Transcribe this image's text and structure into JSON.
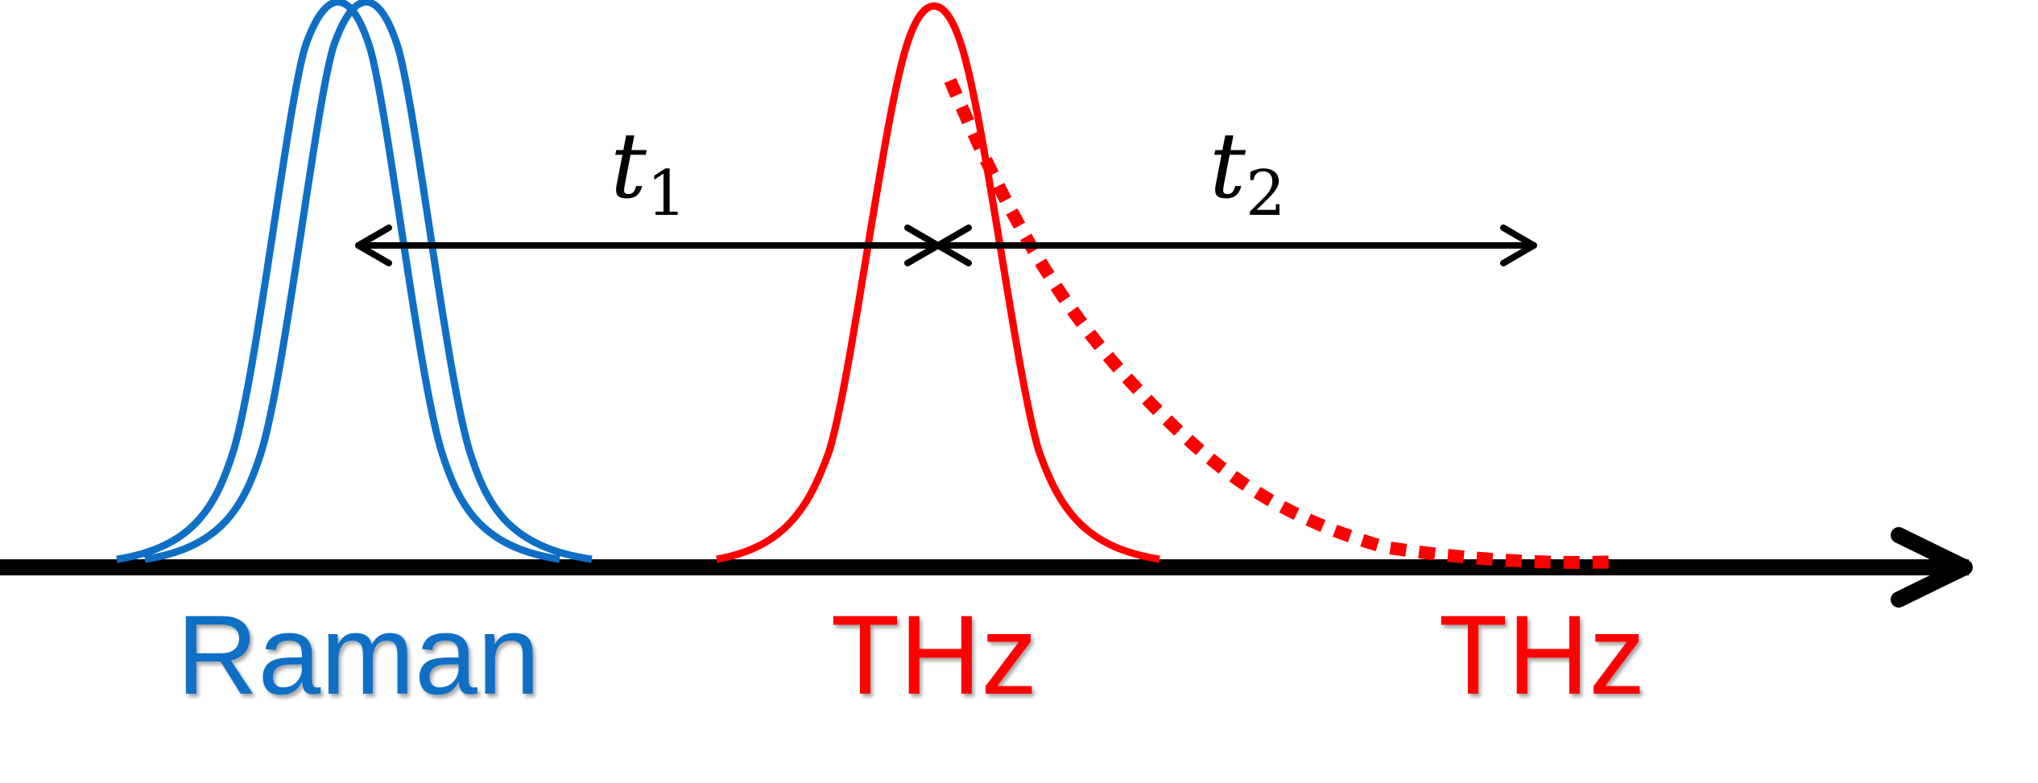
{
  "colors": {
    "raman": "#0f6fc6",
    "thz": "#ff0000",
    "axis": "#000000"
  },
  "labels": {
    "raman": "Raman",
    "thz_pump": "THz",
    "thz_probe": "THz"
  },
  "intervals": {
    "t1": {
      "symbol": "t",
      "subscript": "1"
    },
    "t2": {
      "symbol": "t",
      "subscript": "2"
    }
  }
}
